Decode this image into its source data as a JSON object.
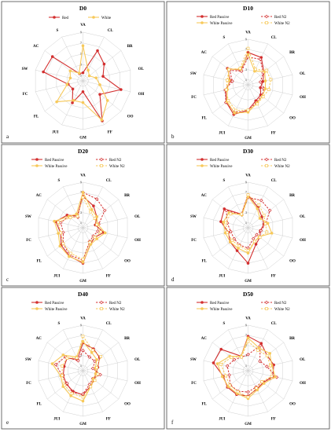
{
  "figure": {
    "colors": {
      "red": "#d32f2f",
      "white": "#f7c95a"
    },
    "axes": [
      "VA",
      "CL",
      "BR",
      "OL",
      "OH",
      "OO",
      "FF",
      "GM",
      "JUI",
      "FL",
      "FC",
      "SW",
      "AC",
      "S"
    ],
    "rticks": [
      "1",
      "3",
      "5",
      "7",
      "9"
    ],
    "rmax": 9
  },
  "chart_data": [
    {
      "type": "radar",
      "label": "a",
      "title": "D0",
      "legend_position": "top",
      "series": [
        {
          "name": "Red",
          "style": "red-solid",
          "values": [
            1.5,
            6.2,
            5.0,
            3.8,
            7.2,
            4.0,
            8.2,
            2.0,
            4.5,
            2.4,
            2.8,
            7.5,
            7.2,
            1.5
          ]
        },
        {
          "name": "White",
          "style": "white-solid",
          "values": [
            6.5,
            2.2,
            1.5,
            2.5,
            3.2,
            5.8,
            8.0,
            4.0,
            4.0,
            6.2,
            3.0,
            2.4,
            3.0,
            1.6
          ]
        }
      ]
    },
    {
      "type": "radar",
      "label": "b",
      "title": "D10",
      "legend_position": "top",
      "series": [
        {
          "name": "Red Passive",
          "style": "red-solid",
          "values": [
            6.4,
            6.0,
            4.0,
            3.0,
            2.5,
            3.2,
            3.5,
            5.0,
            6.5,
            5.5,
            4.5,
            3.6,
            5.2,
            3.2
          ]
        },
        {
          "name": "Red N2",
          "style": "red-dashed",
          "values": [
            5.5,
            5.6,
            3.8,
            2.5,
            3.2,
            3.5,
            3.8,
            5.2,
            6.0,
            5.6,
            4.6,
            3.2,
            4.6,
            3.0
          ]
        },
        {
          "name": "White Passive",
          "style": "white-solid",
          "values": [
            6.0,
            3.0,
            4.2,
            3.5,
            3.5,
            3.6,
            4.0,
            5.4,
            6.2,
            5.3,
            4.2,
            3.8,
            5.0,
            3.4
          ]
        },
        {
          "name": "White N2",
          "style": "white-dashed",
          "values": [
            7.2,
            3.4,
            4.6,
            4.6,
            4.2,
            3.8,
            4.2,
            5.0,
            5.6,
            5.0,
            4.4,
            4.2,
            4.8,
            3.6
          ]
        }
      ]
    },
    {
      "type": "radar",
      "label": "c",
      "title": "D20",
      "legend_position": "top",
      "series": [
        {
          "name": "Red Passive",
          "style": "red-solid",
          "values": [
            6.2,
            4.8,
            3.5,
            2.5,
            4.2,
            3.0,
            3.5,
            7.0,
            6.2,
            5.5,
            4.5,
            5.5,
            4.0,
            2.6
          ]
        },
        {
          "name": "Red N2",
          "style": "red-dashed",
          "values": [
            7.0,
            6.3,
            5.5,
            3.2,
            3.0,
            2.6,
            3.0,
            6.4,
            6.0,
            5.0,
            4.0,
            4.5,
            3.6,
            2.3
          ]
        },
        {
          "name": "White Passive",
          "style": "white-solid",
          "values": [
            7.0,
            4.0,
            3.5,
            3.0,
            4.5,
            3.5,
            3.6,
            6.8,
            6.3,
            5.8,
            5.0,
            5.8,
            3.6,
            3.0
          ]
        },
        {
          "name": "White N2",
          "style": "white-dashed",
          "values": [
            6.0,
            3.5,
            3.0,
            2.8,
            3.6,
            3.0,
            3.2,
            6.2,
            5.6,
            5.0,
            4.5,
            5.0,
            3.2,
            2.5
          ]
        }
      ]
    },
    {
      "type": "radar",
      "label": "d",
      "title": "D30",
      "legend_position": "top",
      "series": [
        {
          "name": "Red Passive",
          "style": "red-solid",
          "values": [
            6.5,
            4.5,
            3.5,
            3.2,
            2.5,
            3.0,
            3.6,
            7.0,
            5.0,
            4.5,
            4.0,
            5.5,
            6.0,
            3.0
          ]
        },
        {
          "name": "Red N2",
          "style": "red-dashed",
          "values": [
            6.0,
            6.0,
            5.5,
            3.6,
            2.6,
            2.2,
            2.4,
            4.0,
            3.8,
            3.5,
            3.5,
            4.2,
            5.5,
            2.8
          ]
        },
        {
          "name": "White Passive",
          "style": "white-solid",
          "values": [
            6.2,
            4.2,
            3.0,
            4.0,
            4.8,
            2.8,
            3.0,
            5.0,
            4.5,
            4.5,
            4.6,
            5.0,
            4.8,
            2.8
          ]
        },
        {
          "name": "White N2",
          "style": "white-dashed",
          "values": [
            6.5,
            5.0,
            4.0,
            3.5,
            3.8,
            3.0,
            3.0,
            4.5,
            4.0,
            4.0,
            4.2,
            4.5,
            4.4,
            3.0
          ]
        }
      ]
    },
    {
      "type": "radar",
      "label": "e",
      "title": "D40",
      "legend_position": "top",
      "series": [
        {
          "name": "Red Passive",
          "style": "red-solid",
          "values": [
            5.5,
            4.8,
            4.2,
            3.0,
            2.6,
            2.8,
            3.4,
            4.8,
            4.5,
            4.2,
            4.0,
            3.8,
            4.0,
            2.5
          ]
        },
        {
          "name": "Red N2",
          "style": "red-dashed",
          "values": [
            4.0,
            3.0,
            3.0,
            2.0,
            3.5,
            2.5,
            3.0,
            4.6,
            4.8,
            4.0,
            4.2,
            5.5,
            4.4,
            2.2
          ]
        },
        {
          "name": "White Passive",
          "style": "white-solid",
          "values": [
            5.8,
            4.0,
            3.5,
            2.5,
            2.6,
            2.6,
            3.5,
            6.0,
            5.5,
            5.0,
            4.5,
            6.2,
            5.0,
            3.0
          ]
        },
        {
          "name": "White N2",
          "style": "white-dashed",
          "values": [
            6.8,
            4.5,
            4.5,
            2.8,
            3.0,
            3.0,
            3.5,
            5.2,
            5.0,
            4.6,
            4.2,
            4.2,
            4.0,
            2.8
          ]
        }
      ]
    },
    {
      "type": "radar",
      "label": "f",
      "title": "D50",
      "legend_position": "top",
      "series": [
        {
          "name": "Red Passive",
          "style": "red-solid",
          "values": [
            6.8,
            6.0,
            4.8,
            5.2,
            5.0,
            3.8,
            4.0,
            5.0,
            5.2,
            5.2,
            5.0,
            7.0,
            6.8,
            3.2
          ]
        },
        {
          "name": "Red N2",
          "style": "red-dashed",
          "values": [
            3.2,
            5.5,
            3.0,
            3.8,
            5.8,
            3.5,
            3.6,
            4.2,
            4.5,
            4.5,
            3.8,
            4.2,
            3.5,
            3.0
          ]
        },
        {
          "name": "White Passive",
          "style": "white-solid",
          "values": [
            6.5,
            5.0,
            5.5,
            4.8,
            5.5,
            4.0,
            4.2,
            5.5,
            5.0,
            5.0,
            5.2,
            6.2,
            4.6,
            3.2
          ]
        },
        {
          "name": "White N2",
          "style": "white-dashed",
          "values": [
            5.8,
            4.5,
            4.8,
            4.5,
            4.8,
            3.5,
            3.8,
            5.2,
            4.6,
            4.6,
            4.5,
            5.5,
            4.2,
            3.0
          ]
        }
      ]
    }
  ]
}
